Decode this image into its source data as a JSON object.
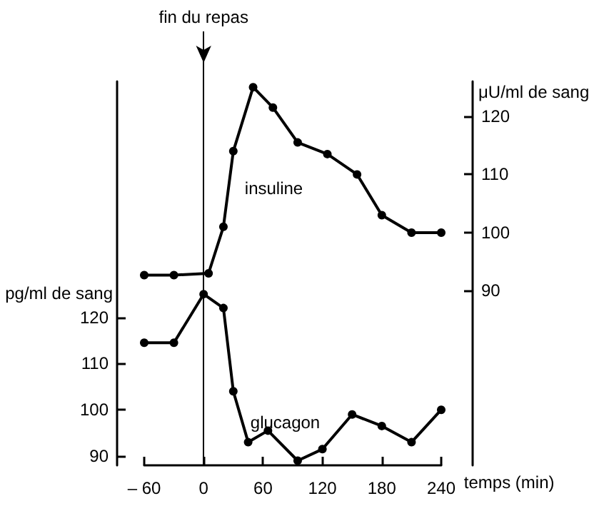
{
  "chart_data": {
    "type": "line",
    "xlabel": "temps (min)",
    "ylabel": "pg/ml de sang",
    "y2label": "μU/ml de sang",
    "xlim": [
      -60,
      240
    ],
    "xticks": [
      {
        "value": -60,
        "label": "– 60"
      },
      0,
      60,
      120,
      180,
      240
    ],
    "ylim": [
      88,
      171
    ],
    "yticks": [
      90,
      100,
      110,
      120
    ],
    "y2lim": [
      60,
      126
    ],
    "y2ticks": [
      90,
      100,
      110,
      120
    ],
    "series": [
      {
        "name": "insuline",
        "axis": "y2",
        "color": "#000000",
        "x": [
          -60,
          -30,
          5,
          20,
          30,
          50,
          70,
          95,
          125,
          155,
          180,
          210,
          240
        ],
        "values": [
          92.7,
          92.7,
          93,
          101,
          114,
          125,
          121.5,
          115.5,
          113.5,
          110,
          103,
          100,
          100
        ]
      },
      {
        "name": "glucagon",
        "color": "#000000",
        "x": [
          -60,
          -30,
          0,
          20,
          30,
          45,
          65,
          95,
          120,
          150,
          180,
          210,
          240
        ],
        "values": [
          114.5,
          114.5,
          125,
          122,
          104,
          93,
          95.5,
          89,
          91.5,
          99,
          96.5,
          93,
          100
        ]
      }
    ],
    "ref_lines": [
      {
        "axis": "x",
        "value": 0,
        "label": "fin du repas",
        "color": "#000000"
      }
    ],
    "marker": "circle",
    "grid": false
  }
}
